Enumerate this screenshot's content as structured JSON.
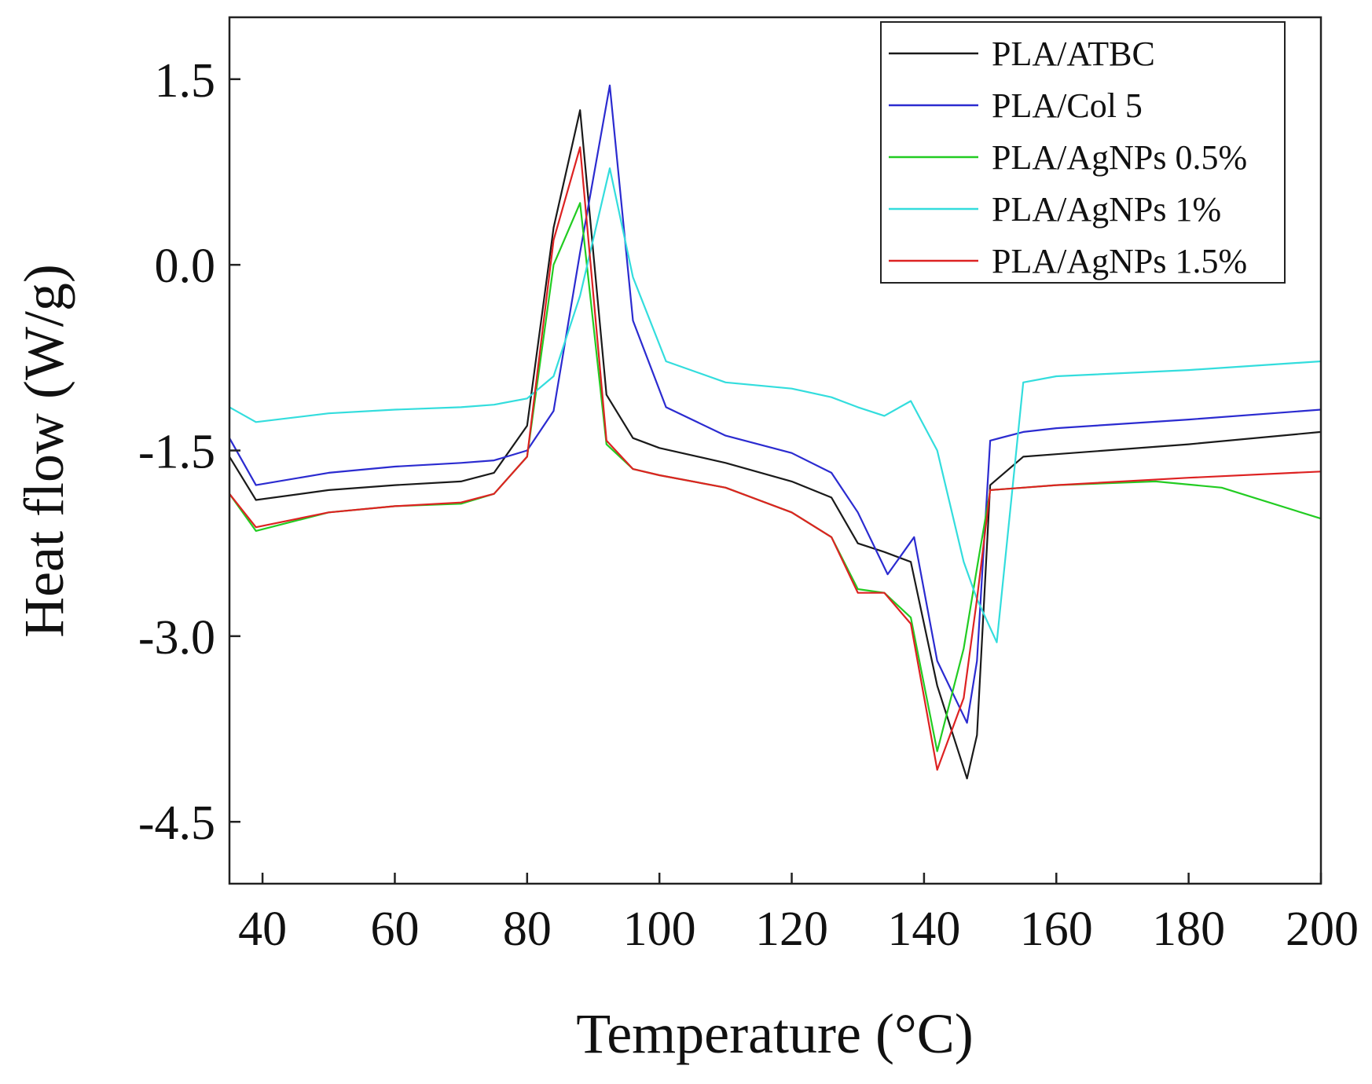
{
  "chart_data": {
    "type": "line",
    "title": "",
    "xlabel": "Temperature (°C)",
    "ylabel": "Heat flow (W/g)",
    "xlim": [
      35,
      200
    ],
    "ylim": [
      -5.0,
      2.0
    ],
    "xticks": [
      40,
      60,
      80,
      100,
      120,
      140,
      160,
      180,
      200
    ],
    "xtick_labels": [
      "40",
      "60",
      "80",
      "100",
      "120",
      "140",
      "160",
      "180",
      "200"
    ],
    "yticks": [
      1.5,
      0.0,
      -1.5,
      -3.0,
      -4.5
    ],
    "ytick_labels": [
      "1.5",
      "0.0",
      "-1.5",
      "-3.0",
      "-4.5"
    ],
    "grid": false,
    "legend_position": "top-right",
    "series": [
      {
        "name": "PLA/ATBC",
        "color": "#1a1a1a",
        "x": [
          35,
          39,
          50,
          60,
          70,
          75,
          80,
          84,
          88,
          92,
          96,
          100,
          110,
          120,
          126,
          130,
          134,
          138,
          142,
          146.5,
          148,
          150,
          155,
          160,
          180,
          200
        ],
        "y": [
          -1.55,
          -1.9,
          -1.82,
          -1.78,
          -1.75,
          -1.68,
          -1.3,
          0.3,
          1.25,
          -1.05,
          -1.4,
          -1.48,
          -1.6,
          -1.75,
          -1.88,
          -2.25,
          -2.32,
          -2.4,
          -3.4,
          -4.15,
          -3.8,
          -1.78,
          -1.55,
          -1.53,
          -1.45,
          -1.35
        ]
      },
      {
        "name": "PLA/Col 5",
        "color": "#2b2bd0",
        "x": [
          35,
          39,
          50,
          60,
          70,
          75,
          80,
          84,
          88,
          92.5,
          96,
          101,
          110,
          120,
          126,
          130,
          134.5,
          138.5,
          142,
          146.5,
          148,
          150,
          155,
          160,
          180,
          200
        ],
        "y": [
          -1.4,
          -1.78,
          -1.68,
          -1.63,
          -1.6,
          -1.58,
          -1.5,
          -1.18,
          0.1,
          1.45,
          -0.45,
          -1.15,
          -1.38,
          -1.52,
          -1.68,
          -2.0,
          -2.5,
          -2.2,
          -3.2,
          -3.7,
          -3.2,
          -1.42,
          -1.35,
          -1.32,
          -1.25,
          -1.17
        ]
      },
      {
        "name": "PLA/AgNPs 0.5%",
        "color": "#22cc22",
        "x": [
          35,
          39,
          50,
          60,
          70,
          75,
          80,
          84,
          88,
          92,
          96,
          100,
          110,
          120,
          126,
          130,
          134,
          138,
          142,
          146,
          148,
          150,
          155,
          160,
          175,
          185,
          200
        ],
        "y": [
          -1.85,
          -2.15,
          -2.0,
          -1.95,
          -1.93,
          -1.85,
          -1.55,
          0.0,
          0.5,
          -1.45,
          -1.65,
          -1.7,
          -1.8,
          -2.0,
          -2.2,
          -2.62,
          -2.65,
          -2.85,
          -3.93,
          -3.1,
          -2.45,
          -1.82,
          -1.8,
          -1.78,
          -1.75,
          -1.8,
          -2.05
        ]
      },
      {
        "name": "PLA/AgNPs 1%",
        "color": "#33dddd",
        "x": [
          35,
          39,
          50,
          60,
          70,
          75,
          80,
          84,
          88,
          92.5,
          96,
          101,
          110,
          120,
          126,
          130,
          134,
          138,
          142,
          146,
          148,
          151,
          155,
          160,
          180,
          200
        ],
        "y": [
          -1.15,
          -1.27,
          -1.2,
          -1.17,
          -1.15,
          -1.13,
          -1.08,
          -0.9,
          -0.25,
          0.78,
          -0.1,
          -0.78,
          -0.95,
          -1.0,
          -1.07,
          -1.15,
          -1.22,
          -1.1,
          -1.5,
          -2.4,
          -2.7,
          -3.05,
          -0.95,
          -0.9,
          -0.85,
          -0.78
        ]
      },
      {
        "name": "PLA/AgNPs 1.5%",
        "color": "#dd2222",
        "x": [
          35,
          39,
          50,
          60,
          70,
          75,
          80,
          84,
          88,
          92,
          96,
          100,
          110,
          120,
          126,
          130,
          134,
          138,
          142,
          146,
          148,
          150,
          155,
          160,
          180,
          200
        ],
        "y": [
          -1.85,
          -2.12,
          -2.0,
          -1.95,
          -1.92,
          -1.85,
          -1.55,
          0.2,
          0.95,
          -1.42,
          -1.65,
          -1.7,
          -1.8,
          -2.0,
          -2.2,
          -2.65,
          -2.65,
          -2.9,
          -4.08,
          -3.5,
          -2.7,
          -1.82,
          -1.8,
          -1.78,
          -1.72,
          -1.67
        ]
      }
    ]
  }
}
